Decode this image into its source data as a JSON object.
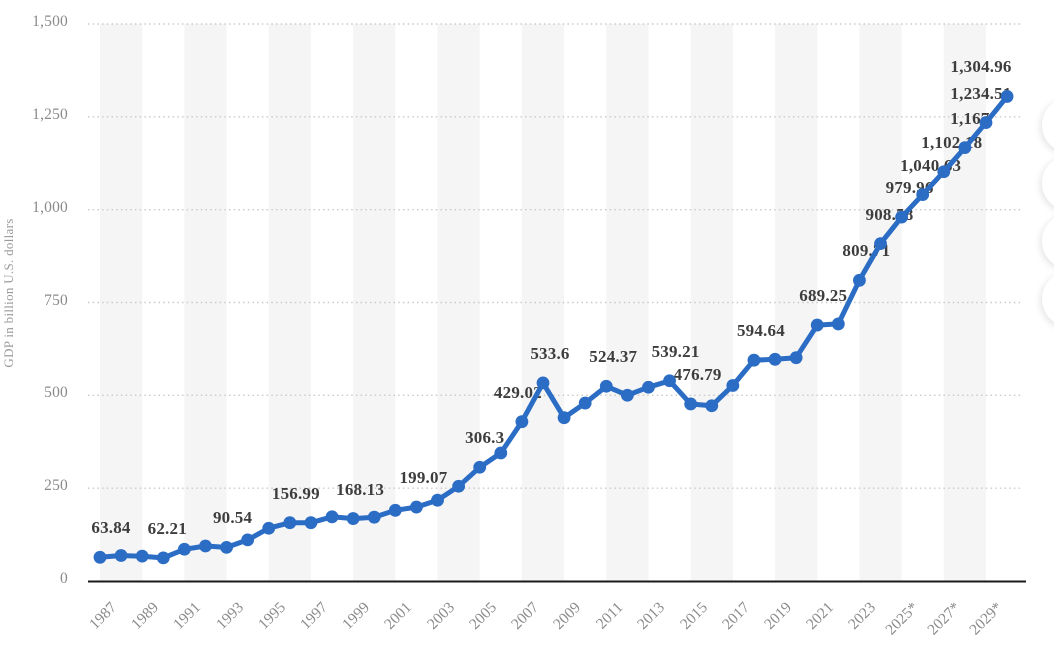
{
  "chart_data": {
    "type": "line",
    "title": "",
    "xlabel": "",
    "ylabel": "GDP in billion U.S. dollars",
    "ylim": [
      0,
      1500
    ],
    "y_tick_labels": [
      "0",
      "250",
      "500",
      "750",
      "1,000",
      "1,250",
      "1,500"
    ],
    "y_tick_values": [
      0,
      250,
      500,
      750,
      1000,
      1250,
      1500
    ],
    "x_tick_years": [
      1987,
      1989,
      1991,
      1993,
      1995,
      1997,
      1999,
      2001,
      2003,
      2005,
      2007,
      2009,
      2011,
      2013,
      2015,
      2017,
      2019,
      2021,
      2023,
      2025,
      2027,
      2029
    ],
    "x_tick_labels": [
      "1987",
      "1989",
      "1991",
      "1993",
      "1995",
      "1997",
      "1999",
      "2001",
      "2003",
      "2005",
      "2007",
      "2009",
      "2011",
      "2013",
      "2015",
      "2017",
      "2019",
      "2021",
      "2023",
      "2025*",
      "2027*",
      "2029*"
    ],
    "grid": "dotted-horizontal",
    "plot_bands": "alternating-vertical-stripes",
    "legend_position": "none",
    "series": [
      {
        "name": "GDP in billion U.S. dollars",
        "years": [
          1987,
          1988,
          1989,
          1990,
          1991,
          1992,
          1993,
          1994,
          1995,
          1996,
          1997,
          1998,
          1999,
          2000,
          2001,
          2002,
          2003,
          2004,
          2005,
          2006,
          2007,
          2008,
          2009,
          2010,
          2011,
          2012,
          2013,
          2014,
          2015,
          2016,
          2017,
          2018,
          2019,
          2020,
          2021,
          2022,
          2023,
          2024,
          2025,
          2026,
          2027,
          2028,
          2029,
          2030
        ],
        "values": [
          63.84,
          68.6,
          66.9,
          62.21,
          85.5,
          94.3,
          90.54,
          110.8,
          142.1,
          156.99,
          157.1,
          172.9,
          168.13,
          171.9,
          190.4,
          199.07,
          217.6,
          255.1,
          306.3,
          344.8,
          429.02,
          533.6,
          439.8,
          479.2,
          524.37,
          500.3,
          521.8,
          539.21,
          476.79,
          472.0,
          526.5,
          594.64,
          597.0,
          601.4,
          689.25,
          692.3,
          809.71,
          908.58,
          979.96,
          1040.63,
          1102.18,
          1167.0,
          1234.51,
          1304.96
        ]
      }
    ],
    "point_labels": [
      {
        "year": 1987,
        "text": "63.84",
        "dx": 11
      },
      {
        "year": 1990,
        "text": "62.21",
        "dx": 4
      },
      {
        "year": 1993,
        "text": "90.54",
        "dx": 6
      },
      {
        "year": 1996,
        "text": "156.99",
        "dx": 6
      },
      {
        "year": 1999,
        "text": "168.13",
        "dx": 7
      },
      {
        "year": 2002,
        "text": "199.07",
        "dx": 7
      },
      {
        "year": 2005,
        "text": "306.3",
        "dx": 5
      },
      {
        "year": 2007,
        "text": "429.02",
        "dx": -4
      },
      {
        "year": 2008,
        "text": "533.6",
        "dx": 7
      },
      {
        "year": 2011,
        "text": "524.37",
        "dx": 7
      },
      {
        "year": 2014,
        "text": "539.21",
        "dx": 6
      },
      {
        "year": 2015,
        "text": "476.79",
        "dx": 7
      },
      {
        "year": 2018,
        "text": "594.64",
        "dx": 7
      },
      {
        "year": 2021,
        "text": "689.25",
        "dx": 6
      },
      {
        "year": 2023,
        "text": "809.71",
        "dx": 7
      },
      {
        "year": 2024,
        "text": "908.58",
        "dx": 9
      },
      {
        "year": 2025,
        "text": "979.96",
        "dx": 8
      },
      {
        "year": 2026,
        "text": "1,040.63",
        "dx": 8
      },
      {
        "year": 2027,
        "text": "1,102.18",
        "dx": 8
      },
      {
        "year": 2028,
        "text": "1,167",
        "dx": 5
      },
      {
        "year": 2029,
        "text": "1,234.51",
        "dx": -5
      },
      {
        "year": 2030,
        "text": "1,304.96",
        "dx": -26
      }
    ],
    "colors": {
      "line": "#2b6cc4",
      "point": "#2b6cc4",
      "band": "#f5f5f5",
      "gridline": "#c9c9c9",
      "axis_line": "#1a1a1a",
      "tick_text": "#8a8a8a",
      "data_label_text": "#3d3d3d"
    },
    "footnote_marker": "*"
  }
}
